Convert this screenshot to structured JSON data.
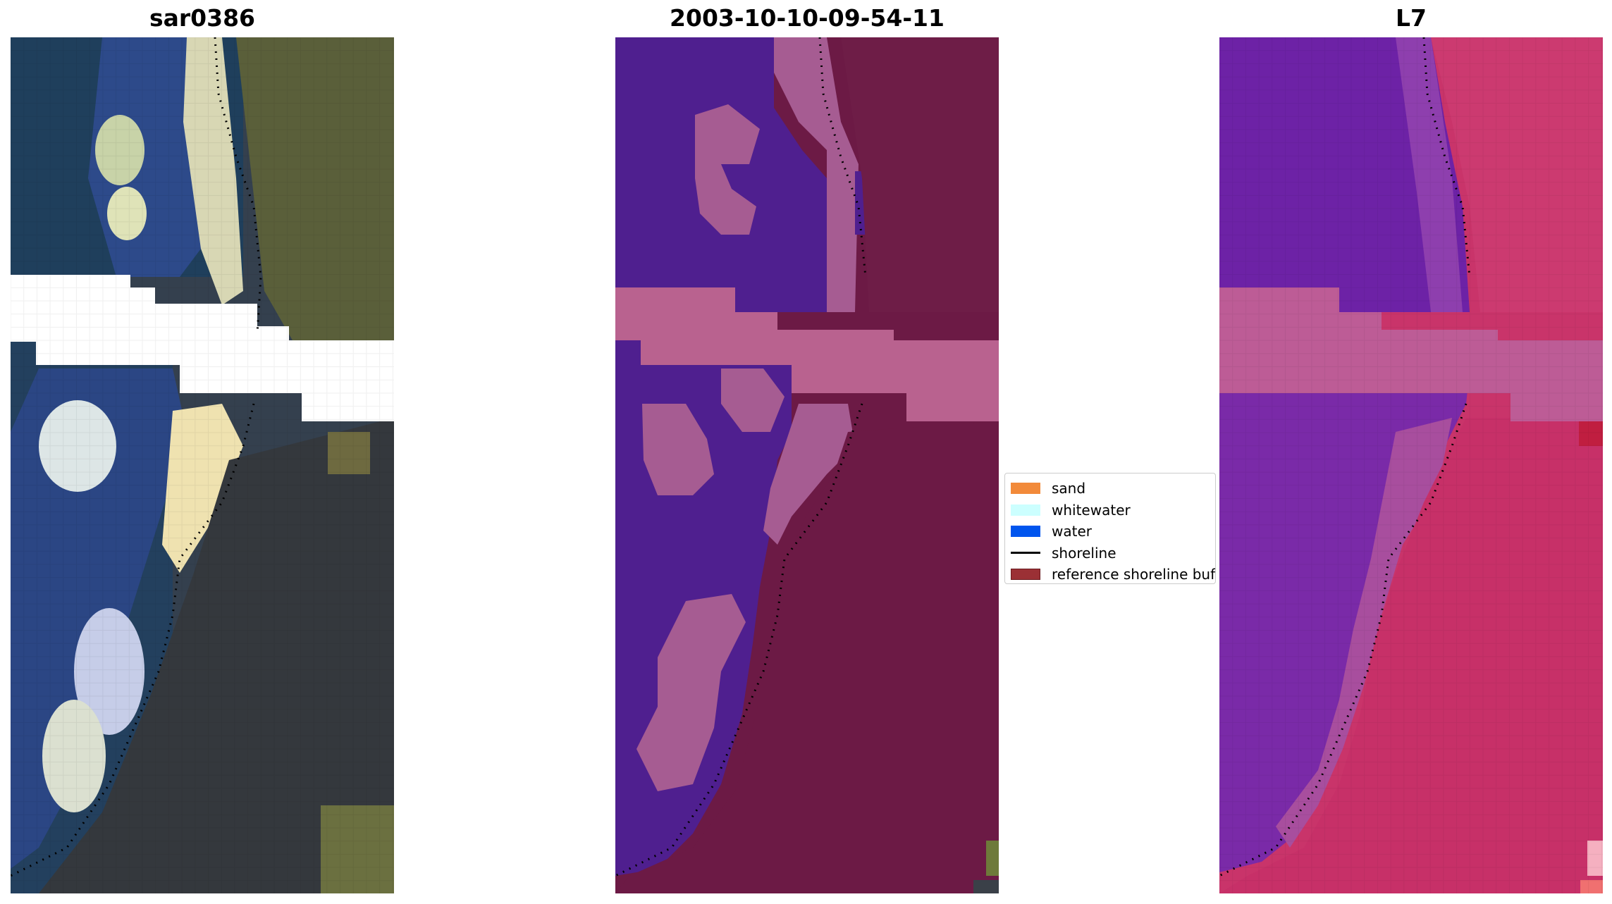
{
  "panels": [
    {
      "title": "sar0386"
    },
    {
      "title": "2003-10-10-09-54-11"
    },
    {
      "title": "L7"
    }
  ],
  "legend": {
    "items": [
      {
        "label": "sand",
        "color": "#f28a3a",
        "type": "patch"
      },
      {
        "label": "whitewater",
        "color": "#ccffff",
        "type": "patch"
      },
      {
        "label": "water",
        "color": "#0055ee",
        "type": "patch"
      },
      {
        "label": "shoreline",
        "color": "#000000",
        "type": "line"
      },
      {
        "label": "reference shoreline buffer",
        "color": "#9b3035",
        "type": "patch"
      }
    ]
  },
  "colors": {
    "rgb_dark": "#2f3a4f",
    "rgb_veg": "#6b6f3e",
    "class_water": "#4f1f8f",
    "class_land": "#6c1a45",
    "class_nodata_band": "#b9628f",
    "false_color_water": "#6d22a6",
    "false_color_land": "#c9346a"
  }
}
